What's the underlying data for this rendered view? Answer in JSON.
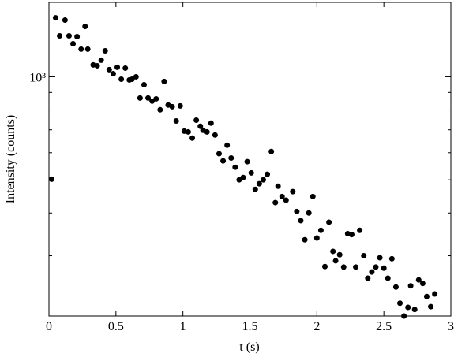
{
  "chart_data": {
    "type": "scatter",
    "xlabel": "t (s)",
    "ylabel": "Intensity (counts)",
    "xlim": [
      0,
      3
    ],
    "xticks": [
      0,
      0.5,
      1,
      1.5,
      2,
      2.5,
      3
    ],
    "ylim": [
      200,
      1650
    ],
    "ylog": true,
    "yticks": [
      {
        "value": 1000,
        "label": "10³"
      }
    ],
    "yminorticks": [
      200,
      300,
      400,
      500,
      600,
      700,
      800,
      900
    ],
    "color": "#000000",
    "x": [
      0.02,
      0.05,
      0.08,
      0.12,
      0.15,
      0.18,
      0.21,
      0.24,
      0.27,
      0.29,
      0.33,
      0.36,
      0.39,
      0.42,
      0.45,
      0.48,
      0.51,
      0.54,
      0.57,
      0.6,
      0.62,
      0.65,
      0.68,
      0.71,
      0.74,
      0.77,
      0.8,
      0.83,
      0.86,
      0.89,
      0.92,
      0.95,
      0.98,
      1.01,
      1.04,
      1.07,
      1.1,
      1.13,
      1.15,
      1.18,
      1.21,
      1.24,
      1.27,
      1.3,
      1.33,
      1.36,
      1.39,
      1.42,
      1.45,
      1.48,
      1.51,
      1.54,
      1.57,
      1.6,
      1.63,
      1.66,
      1.69,
      1.71,
      1.74,
      1.77,
      1.82,
      1.85,
      1.88,
      1.91,
      1.94,
      1.97,
      2.0,
      2.03,
      2.06,
      2.09,
      2.12,
      2.14,
      2.17,
      2.2,
      2.23,
      2.26,
      2.29,
      2.32,
      2.35,
      2.38,
      2.41,
      2.44,
      2.47,
      2.5,
      2.53,
      2.56,
      2.59,
      2.62,
      2.65,
      2.68,
      2.7,
      2.73,
      2.76,
      2.79,
      2.82,
      2.85,
      2.88
    ],
    "values": [
      502,
      1487,
      1317,
      1464,
      1317,
      1249,
      1310,
      1204,
      1403,
      1204,
      1083,
      1077,
      1118,
      1191,
      1049,
      1021,
      1066,
      984,
      1060,
      979,
      984,
      1000,
      867,
      948,
      867,
      849,
      862,
      801,
      969,
      827,
      818,
      743,
      822,
      694,
      690,
      662,
      747,
      717,
      698,
      690,
      732,
      676,
      596,
      568,
      631,
      579,
      544,
      500,
      508,
      565,
      524,
      469,
      487,
      500,
      519,
      605,
      429,
      479,
      447,
      436,
      462,
      404,
      380,
      334,
      400,
      447,
      338,
      356,
      279,
      376,
      309,
      290,
      302,
      278,
      348,
      346,
      278,
      356,
      300,
      258,
      269,
      278,
      296,
      276,
      258,
      294,
      243,
      218,
      200,
      212,
      245,
      209,
      255,
      249,
      228,
      213,
      232
    ]
  }
}
